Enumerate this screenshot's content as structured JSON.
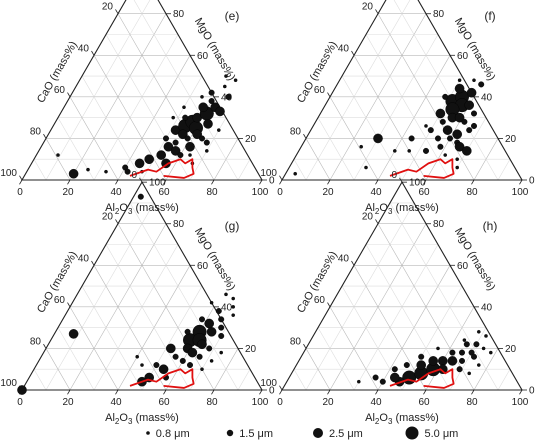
{
  "figure": {
    "legend": [
      {
        "label": "0.8 μm",
        "size": "small"
      },
      {
        "label": "1.5 μm",
        "size": "medium"
      },
      {
        "label": "2.5 μm",
        "size": "large"
      },
      {
        "label": "5.0 μm",
        "size": "xlarge"
      }
    ]
  },
  "chart_data": [
    {
      "type": "ternary-scatter",
      "panel_label": "(e)",
      "axes": {
        "bottom": {
          "label_prefix": "Al",
          "label_sub1": "2",
          "label_mid": "O",
          "label_sub2": "3",
          "label_suffix": " (mass%)"
        },
        "left": {
          "label": "CaO (mass%)"
        },
        "right": {
          "label": "MgO (mass%)"
        },
        "ticks": [
          0,
          20,
          40,
          60,
          80,
          100
        ],
        "range": [
          0,
          100
        ],
        "grid": true
      },
      "boundary": [
        [
          44,
          2
        ],
        [
          50,
          5
        ],
        [
          54,
          4
        ],
        [
          57,
          8
        ],
        [
          61,
          10
        ],
        [
          64,
          8
        ],
        [
          66,
          10
        ],
        [
          68,
          6
        ],
        [
          70,
          3
        ],
        [
          67,
          1
        ],
        [
          58,
          2
        ]
      ],
      "points": [
        {
          "al": 52,
          "mg": 24,
          "d": 2.5
        },
        {
          "al": 55,
          "mg": 26,
          "d": 5.0
        },
        {
          "al": 57,
          "mg": 28,
          "d": 5.0
        },
        {
          "al": 56,
          "mg": 22,
          "d": 2.5
        },
        {
          "al": 60,
          "mg": 25,
          "d": 5.0
        },
        {
          "al": 58,
          "mg": 30,
          "d": 2.5
        },
        {
          "al": 61,
          "mg": 32,
          "d": 5.0
        },
        {
          "al": 62,
          "mg": 22,
          "d": 2.5
        },
        {
          "al": 64,
          "mg": 27,
          "d": 2.5
        },
        {
          "al": 59,
          "mg": 20,
          "d": 1.5
        },
        {
          "al": 55,
          "mg": 18,
          "d": 1.5
        },
        {
          "al": 63,
          "mg": 35,
          "d": 2.5
        },
        {
          "al": 60,
          "mg": 38,
          "d": 1.5
        },
        {
          "al": 66,
          "mg": 33,
          "d": 2.5
        },
        {
          "al": 65,
          "mg": 20,
          "d": 1.5
        },
        {
          "al": 50,
          "mg": 20,
          "d": 1.5
        },
        {
          "al": 53,
          "mg": 16,
          "d": 2.5
        },
        {
          "al": 57,
          "mg": 14,
          "d": 2.5
        },
        {
          "al": 60,
          "mg": 12,
          "d": 1.5
        },
        {
          "al": 52,
          "mg": 12,
          "d": 2.5
        },
        {
          "al": 48,
          "mg": 10,
          "d": 2.5
        },
        {
          "al": 45,
          "mg": 8,
          "d": 2.5
        },
        {
          "al": 40,
          "mg": 6,
          "d": 1.5
        },
        {
          "al": 56,
          "mg": 8,
          "d": 2.5
        },
        {
          "al": 62,
          "mg": 16,
          "d": 2.5
        },
        {
          "al": 68,
          "mg": 18,
          "d": 1.5
        },
        {
          "al": 58,
          "mg": 42,
          "d": 1.5
        },
        {
          "al": 62,
          "mg": 45,
          "d": 0.8
        },
        {
          "al": 55,
          "mg": 40,
          "d": 0.8
        },
        {
          "al": 66,
          "mg": 40,
          "d": 1.5
        },
        {
          "al": 70,
          "mg": 24,
          "d": 0.8
        },
        {
          "al": 70,
          "mg": 14,
          "d": 0.8
        },
        {
          "al": 67,
          "mg": 8,
          "d": 0.8
        },
        {
          "al": 48,
          "mg": 30,
          "d": 0.8
        },
        {
          "al": 50,
          "mg": 35,
          "d": 0.8
        },
        {
          "al": 25,
          "mg": 5,
          "d": 0.8
        },
        {
          "al": 20,
          "mg": 3,
          "d": 2.5
        },
        {
          "al": 33,
          "mg": 4,
          "d": 0.8
        },
        {
          "al": 42,
          "mg": 4,
          "d": 1.5
        },
        {
          "al": 48,
          "mg": 4,
          "d": 0.8
        },
        {
          "al": 65,
          "mg": 48,
          "d": 0.8
        },
        {
          "al": 60,
          "mg": 50,
          "d": 0.8
        },
        {
          "al": 53,
          "mg": 30,
          "d": 1.5
        },
        {
          "al": 58,
          "mg": 35,
          "d": 2.5
        },
        {
          "al": 64,
          "mg": 12,
          "d": 0.8
        },
        {
          "al": 9,
          "mg": 12,
          "d": 0.8
        }
      ]
    },
    {
      "type": "ternary-scatter",
      "panel_label": "(f)",
      "axes": {
        "bottom": {
          "label_prefix": "Al",
          "label_sub1": "2",
          "label_mid": "O",
          "label_sub2": "3",
          "label_suffix": " (mass%)"
        },
        "left": {
          "label": "CaO (mass%)"
        },
        "right": {
          "label": "MgO (mass%)"
        },
        "ticks": [
          0,
          20,
          40,
          60,
          80,
          100
        ],
        "range": [
          0,
          100
        ],
        "grid": true
      },
      "boundary": [
        [
          44,
          2
        ],
        [
          50,
          5
        ],
        [
          54,
          4
        ],
        [
          57,
          8
        ],
        [
          61,
          10
        ],
        [
          64,
          8
        ],
        [
          66,
          10
        ],
        [
          68,
          6
        ],
        [
          70,
          3
        ],
        [
          67,
          1
        ],
        [
          58,
          2
        ]
      ],
      "points": [
        {
          "al": 52,
          "mg": 38,
          "d": 5.0
        },
        {
          "al": 55,
          "mg": 40,
          "d": 5.0
        },
        {
          "al": 57,
          "mg": 36,
          "d": 5.0
        },
        {
          "al": 54,
          "mg": 34,
          "d": 5.0
        },
        {
          "al": 58,
          "mg": 42,
          "d": 2.5
        },
        {
          "al": 52,
          "mg": 44,
          "d": 2.5
        },
        {
          "al": 56,
          "mg": 30,
          "d": 2.5
        },
        {
          "al": 60,
          "mg": 36,
          "d": 2.5
        },
        {
          "al": 50,
          "mg": 32,
          "d": 2.5
        },
        {
          "al": 53,
          "mg": 28,
          "d": 1.5
        },
        {
          "al": 59,
          "mg": 30,
          "d": 2.5
        },
        {
          "al": 62,
          "mg": 28,
          "d": 1.5
        },
        {
          "al": 57,
          "mg": 24,
          "d": 2.5
        },
        {
          "al": 60,
          "mg": 20,
          "d": 1.5
        },
        {
          "al": 62,
          "mg": 22,
          "d": 2.5
        },
        {
          "al": 64,
          "mg": 18,
          "d": 1.5
        },
        {
          "al": 66,
          "mg": 16,
          "d": 2.5
        },
        {
          "al": 55,
          "mg": 20,
          "d": 1.5
        },
        {
          "al": 58,
          "mg": 16,
          "d": 1.5
        },
        {
          "al": 50,
          "mg": 24,
          "d": 1.5
        },
        {
          "al": 47,
          "mg": 26,
          "d": 0.8
        },
        {
          "al": 62,
          "mg": 12,
          "d": 0.8
        },
        {
          "al": 66,
          "mg": 24,
          "d": 1.5
        },
        {
          "al": 64,
          "mg": 32,
          "d": 1.5
        },
        {
          "al": 48,
          "mg": 40,
          "d": 1.5
        },
        {
          "al": 60,
          "mg": 46,
          "d": 1.5
        },
        {
          "al": 50,
          "mg": 48,
          "d": 0.8
        },
        {
          "al": 56,
          "mg": 48,
          "d": 0.8
        },
        {
          "al": 68,
          "mg": 10,
          "d": 0.8
        },
        {
          "al": 70,
          "mg": 6,
          "d": 0.8
        },
        {
          "al": 30,
          "mg": 20,
          "d": 2.5
        },
        {
          "al": 25,
          "mg": 16,
          "d": 0.8
        },
        {
          "al": 32,
          "mg": 6,
          "d": 0.8
        },
        {
          "al": 40,
          "mg": 14,
          "d": 0.8
        },
        {
          "al": 44,
          "mg": 20,
          "d": 1.5
        },
        {
          "al": 46,
          "mg": 14,
          "d": 0.8
        },
        {
          "al": 53,
          "mg": 14,
          "d": 1.5
        },
        {
          "al": 70,
          "mg": 14,
          "d": 2.5
        },
        {
          "al": 67,
          "mg": 26,
          "d": 1.5
        },
        {
          "al": 4,
          "mg": 3,
          "d": 0.8
        }
      ]
    },
    {
      "type": "ternary-scatter",
      "panel_label": "(g)",
      "axes": {
        "bottom": {
          "label_prefix": "Al",
          "label_sub1": "2",
          "label_mid": "O",
          "label_sub2": "3",
          "label_suffix": " (mass%)"
        },
        "left": {
          "label": "CaO (mass%)"
        },
        "right": {
          "label": "MgO (mass%)"
        },
        "ticks": [
          0,
          20,
          40,
          60,
          80,
          100
        ],
        "range": [
          0,
          100
        ],
        "grid": true
      },
      "boundary": [
        [
          44,
          2
        ],
        [
          50,
          5
        ],
        [
          54,
          4
        ],
        [
          57,
          8
        ],
        [
          61,
          10
        ],
        [
          64,
          8
        ],
        [
          66,
          10
        ],
        [
          68,
          6
        ],
        [
          70,
          3
        ],
        [
          67,
          1
        ],
        [
          58,
          2
        ]
      ],
      "points": [
        {
          "al": 58,
          "mg": 24,
          "d": 5.0
        },
        {
          "al": 60,
          "mg": 28,
          "d": 5.0
        },
        {
          "al": 62,
          "mg": 24,
          "d": 5.0
        },
        {
          "al": 59,
          "mg": 20,
          "d": 2.5
        },
        {
          "al": 62,
          "mg": 18,
          "d": 2.5
        },
        {
          "al": 64,
          "mg": 22,
          "d": 2.5
        },
        {
          "al": 62,
          "mg": 32,
          "d": 2.5
        },
        {
          "al": 65,
          "mg": 28,
          "d": 2.5
        },
        {
          "al": 56,
          "mg": 16,
          "d": 1.5
        },
        {
          "al": 60,
          "mg": 14,
          "d": 1.5
        },
        {
          "al": 66,
          "mg": 16,
          "d": 1.5
        },
        {
          "al": 68,
          "mg": 20,
          "d": 1.5
        },
        {
          "al": 66,
          "mg": 34,
          "d": 1.5
        },
        {
          "al": 63,
          "mg": 38,
          "d": 1.5
        },
        {
          "al": 68,
          "mg": 30,
          "d": 1.5
        },
        {
          "al": 70,
          "mg": 26,
          "d": 1.5
        },
        {
          "al": 58,
          "mg": 34,
          "d": 1.5
        },
        {
          "al": 55,
          "mg": 28,
          "d": 1.5
        },
        {
          "al": 72,
          "mg": 14,
          "d": 0.8
        },
        {
          "al": 70,
          "mg": 10,
          "d": 0.8
        },
        {
          "al": 66,
          "mg": 44,
          "d": 0.8
        },
        {
          "al": 62,
          "mg": 46,
          "d": 0.8
        },
        {
          "al": 58,
          "mg": 42,
          "d": 0.8
        },
        {
          "al": 70,
          "mg": 36,
          "d": 0.8
        },
        {
          "al": 52,
          "mg": 20,
          "d": 2.5
        },
        {
          "al": 54,
          "mg": 10,
          "d": 2.5
        },
        {
          "al": 50,
          "mg": 6,
          "d": 2.5
        },
        {
          "al": 48,
          "mg": 4,
          "d": 2.5
        },
        {
          "al": 57,
          "mg": 6,
          "d": 1.5
        },
        {
          "al": 50,
          "mg": 12,
          "d": 1.5
        },
        {
          "al": 0,
          "mg": 0,
          "d": 2.5
        },
        {
          "al": 8,
          "mg": 27,
          "d": 2.5
        },
        {
          "al": 3,
          "mg": 93,
          "d": 1.5
        },
        {
          "al": 40,
          "mg": 16,
          "d": 0.8
        },
        {
          "al": 44,
          "mg": 12,
          "d": 0.8
        },
        {
          "al": 68,
          "mg": 40,
          "d": 0.8
        },
        {
          "al": 74,
          "mg": 18,
          "d": 0.8
        },
        {
          "al": 64,
          "mg": 12,
          "d": 1.5
        }
      ]
    },
    {
      "type": "ternary-scatter",
      "panel_label": "(h)",
      "axes": {
        "bottom": {
          "label_prefix": "Al",
          "label_sub1": "2",
          "label_mid": "O",
          "label_sub2": "3",
          "label_suffix": " (mass%)"
        },
        "left": {
          "label": "CaO (mass%)"
        },
        "right": {
          "label": "MgO (mass%)"
        },
        "ticks": [
          0,
          20,
          40,
          60,
          80,
          100
        ],
        "range": [
          0,
          100
        ],
        "grid": true
      },
      "boundary": [
        [
          44,
          2
        ],
        [
          50,
          5
        ],
        [
          54,
          4
        ],
        [
          57,
          8
        ],
        [
          61,
          10
        ],
        [
          64,
          8
        ],
        [
          66,
          10
        ],
        [
          68,
          6
        ],
        [
          70,
          3
        ],
        [
          67,
          1
        ],
        [
          58,
          2
        ]
      ],
      "points": [
        {
          "al": 50,
          "mg": 6,
          "d": 5.0
        },
        {
          "al": 54,
          "mg": 8,
          "d": 5.0
        },
        {
          "al": 58,
          "mg": 10,
          "d": 5.0
        },
        {
          "al": 47,
          "mg": 4,
          "d": 2.5
        },
        {
          "al": 44,
          "mg": 6,
          "d": 2.5
        },
        {
          "al": 52,
          "mg": 12,
          "d": 2.5
        },
        {
          "al": 60,
          "mg": 14,
          "d": 2.5
        },
        {
          "al": 62,
          "mg": 10,
          "d": 2.5
        },
        {
          "al": 56,
          "mg": 14,
          "d": 2.5
        },
        {
          "al": 64,
          "mg": 14,
          "d": 2.5
        },
        {
          "al": 66,
          "mg": 18,
          "d": 1.5
        },
        {
          "al": 62,
          "mg": 18,
          "d": 1.5
        },
        {
          "al": 68,
          "mg": 14,
          "d": 1.5
        },
        {
          "al": 70,
          "mg": 18,
          "d": 1.5
        },
        {
          "al": 66,
          "mg": 22,
          "d": 1.5
        },
        {
          "al": 70,
          "mg": 22,
          "d": 1.5
        },
        {
          "al": 72,
          "mg": 16,
          "d": 1.5
        },
        {
          "al": 74,
          "mg": 20,
          "d": 0.8
        },
        {
          "al": 72,
          "mg": 26,
          "d": 0.8
        },
        {
          "al": 68,
          "mg": 28,
          "d": 0.8
        },
        {
          "al": 40,
          "mg": 4,
          "d": 1.5
        },
        {
          "al": 42,
          "mg": 10,
          "d": 1.5
        },
        {
          "al": 36,
          "mg": 6,
          "d": 1.5
        },
        {
          "al": 30,
          "mg": 4,
          "d": 0.8
        },
        {
          "al": 46,
          "mg": 12,
          "d": 1.5
        },
        {
          "al": 50,
          "mg": 16,
          "d": 1.5
        },
        {
          "al": 55,
          "mg": 20,
          "d": 0.8
        },
        {
          "al": 76,
          "mg": 12,
          "d": 0.8
        },
        {
          "al": 74,
          "mg": 8,
          "d": 0.8
        },
        {
          "al": 69,
          "mg": 10,
          "d": 1.5
        },
        {
          "al": 64,
          "mg": 24,
          "d": 0.8
        },
        {
          "al": 78,
          "mg": 18,
          "d": 0.8
        }
      ]
    }
  ]
}
